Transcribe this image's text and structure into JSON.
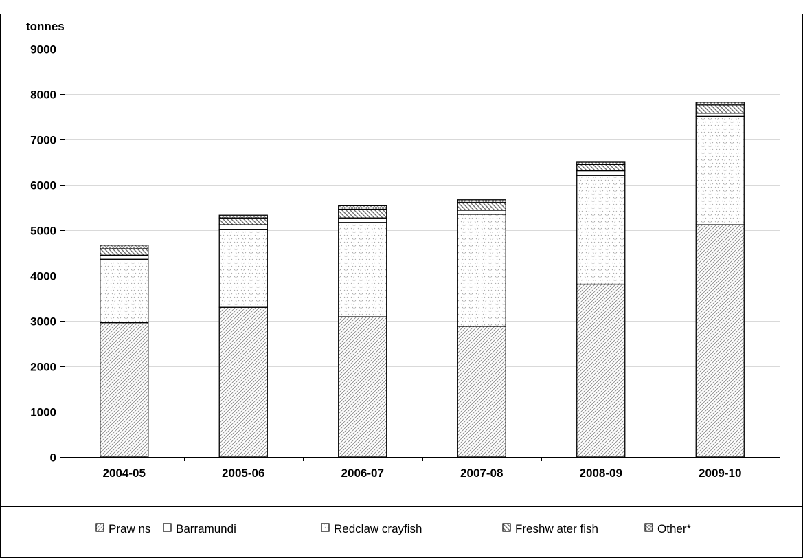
{
  "chart_data": {
    "type": "bar",
    "stacked": true,
    "title": "",
    "ylabel": "tonnes",
    "xlabel": "",
    "categories": [
      "2004-05",
      "2005-06",
      "2006-07",
      "2007-08",
      "2008-09",
      "2009-10"
    ],
    "ylim": [
      0,
      9000
    ],
    "yticks": [
      0,
      1000,
      2000,
      3000,
      4000,
      5000,
      6000,
      7000,
      8000,
      9000
    ],
    "grid": "horizontal",
    "legend_position": "bottom",
    "series": [
      {
        "name": "Praw ns",
        "pattern": "diagonal-hatch",
        "values": [
          2960,
          3300,
          3090,
          2880,
          3810,
          5120
        ]
      },
      {
        "name": "Redclaw  crayfish",
        "pattern": "dots",
        "values": [
          1400,
          1720,
          2080,
          2470,
          2400,
          2390
        ]
      },
      {
        "name": "Barramundi",
        "pattern": "blank",
        "values": [
          90,
          100,
          100,
          90,
          100,
          70
        ]
      },
      {
        "name": "Freshw ater fish",
        "pattern": "back-hatch",
        "values": [
          140,
          150,
          190,
          170,
          140,
          180
        ]
      },
      {
        "name": "Other*",
        "pattern": "cross-hatch",
        "values": [
          80,
          60,
          80,
          60,
          50,
          60
        ]
      }
    ],
    "legend_order": [
      "Praw ns",
      "Barramundi",
      "Redclaw  crayfish",
      "Freshw ater fish",
      "Other*"
    ],
    "colors": {
      "bar_outline": "#000000",
      "hatch": "#8a8a8a",
      "grid": "#d9d9d9"
    }
  }
}
